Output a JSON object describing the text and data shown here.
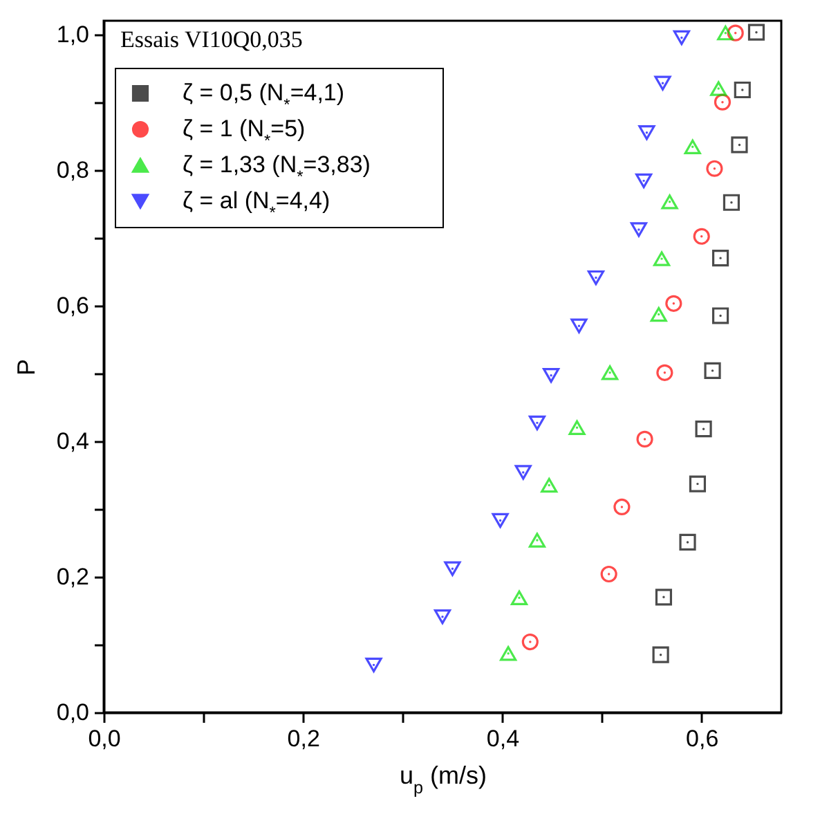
{
  "chart_data": {
    "type": "scatter",
    "annotations": [
      "Essais VI10Q0,035"
    ],
    "xlabel": "u$_{p}$ (m/s)",
    "ylabel": "P",
    "xlim": [
      0,
      0.68
    ],
    "ylim": [
      0,
      1.02
    ],
    "xticks": [
      {
        "value": 0,
        "label": "0,0"
      },
      {
        "value": 0.1,
        "label": null
      },
      {
        "value": 0.2,
        "label": "0,2"
      },
      {
        "value": 0.3,
        "label": null
      },
      {
        "value": 0.4,
        "label": "0,4"
      },
      {
        "value": 0.5,
        "label": null
      },
      {
        "value": 0.6,
        "label": "0,6"
      }
    ],
    "yticks": [
      {
        "value": 0,
        "label": "0,0"
      },
      {
        "value": 0.1,
        "label": null
      },
      {
        "value": 0.2,
        "label": "0,2"
      },
      {
        "value": 0.3,
        "label": null
      },
      {
        "value": 0.4,
        "label": "0,4"
      },
      {
        "value": 0.5,
        "label": null
      },
      {
        "value": 0.6,
        "label": "0,6"
      },
      {
        "value": 0.7,
        "label": null
      },
      {
        "value": 0.8,
        "label": "0,8"
      },
      {
        "value": 0.9,
        "label": null
      },
      {
        "value": 1.0,
        "label": "1,0"
      }
    ],
    "legend": "top left",
    "series": [
      {
        "name": "ζ = 0,5 (N$_{*}$=4,1)",
        "color": "#000000",
        "marker": "square",
        "x": [
          0.559,
          0.562,
          0.586,
          0.596,
          0.602,
          0.611,
          0.619,
          0.619,
          0.63,
          0.638,
          0.641,
          0.655
        ],
        "values": [
          0.085,
          0.17,
          0.251,
          0.337,
          0.418,
          0.504,
          0.585,
          0.67,
          0.752,
          0.837,
          0.918,
          1.003
        ]
      },
      {
        "name": "ζ = 1 (N$_{*}$=5)",
        "color": "#ff0000",
        "marker": "circle",
        "x": [
          0.428,
          0.507,
          0.52,
          0.543,
          0.563,
          0.572,
          0.6,
          0.613,
          0.621,
          0.634
        ],
        "values": [
          0.104,
          0.204,
          0.303,
          0.403,
          0.501,
          0.603,
          0.702,
          0.802,
          0.9,
          1.002
        ]
      },
      {
        "name": "ζ = 1,33 (N$_{*}$=3,83)",
        "color": "#00e000",
        "marker": "triangle",
        "x": [
          0.406,
          0.417,
          0.435,
          0.447,
          0.475,
          0.508,
          0.557,
          0.56,
          0.568,
          0.591,
          0.617,
          0.624
        ],
        "values": [
          0.087,
          0.169,
          0.254,
          0.335,
          0.42,
          0.501,
          0.587,
          0.669,
          0.753,
          0.834,
          0.92,
          1.002
        ]
      },
      {
        "name": "ζ = al (N$_{*}$=4,4)",
        "color": "#0000ff",
        "marker": "triangle-down",
        "x": [
          0.271,
          0.34,
          0.35,
          0.398,
          0.421,
          0.435,
          0.449,
          0.477,
          0.494,
          0.537,
          0.542,
          0.545,
          0.561,
          0.58
        ],
        "values": [
          0.07,
          0.141,
          0.212,
          0.283,
          0.354,
          0.427,
          0.497,
          0.57,
          0.641,
          0.712,
          0.784,
          0.855,
          0.928,
          0.995
        ]
      }
    ]
  }
}
